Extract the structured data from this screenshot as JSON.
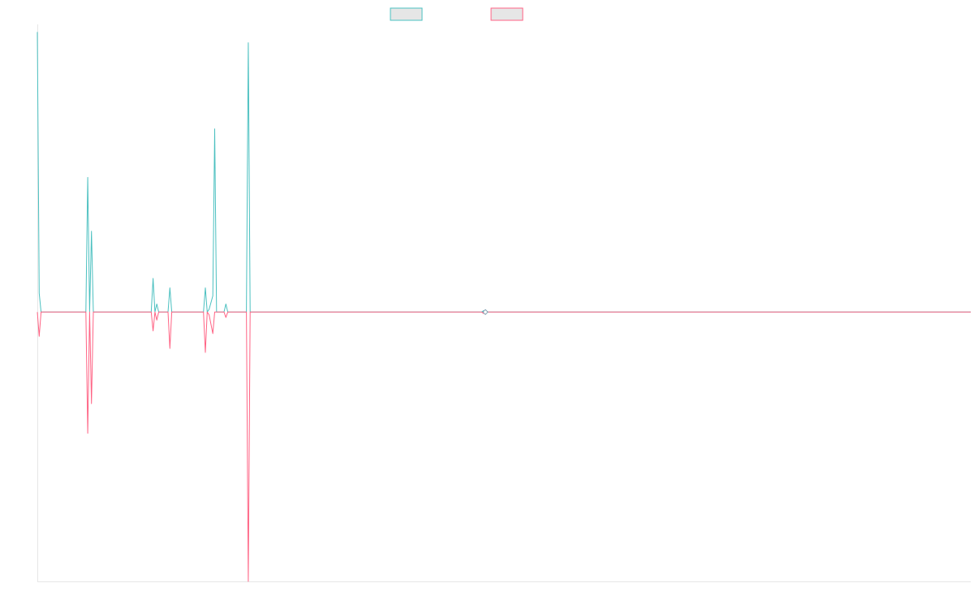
{
  "colors": {
    "series_a": "#4bc0c0",
    "series_b": "#ff6384",
    "legend_fill": "#e6e6e6",
    "axis": "#e6e6e6",
    "background": "#ffffff"
  },
  "chart_data": {
    "type": "line",
    "title": "",
    "xlabel": "",
    "ylabel": "",
    "grid": false,
    "legend": {
      "position": "top-center",
      "entries": [
        {
          "label": "",
          "color": "#4bc0c0"
        },
        {
          "label": "",
          "color": "#ff6384"
        }
      ]
    },
    "axes": {
      "x_ticks_visible": false,
      "y_ticks_visible": false
    },
    "ylim": [
      -1.0,
      1.05
    ],
    "x": [
      0,
      1,
      2,
      26,
      27,
      28,
      29,
      30,
      61,
      62,
      63,
      64,
      65,
      70,
      71,
      72,
      89,
      90,
      91,
      92,
      94,
      95,
      96,
      100,
      101,
      102,
      112,
      113,
      114,
      130,
      131,
      132,
      146,
      147,
      148,
      151,
      152,
      153,
      154,
      160,
      238,
      239,
      240,
      500
    ],
    "series": [
      {
        "values": [
          1.04,
          0.07,
          0,
          0,
          0.5,
          0,
          0.3,
          0,
          0,
          0.125,
          0,
          0.03,
          0,
          0,
          0.09,
          0,
          0,
          0.09,
          0,
          0.01,
          0.06,
          0.68,
          0,
          0,
          0.03,
          0,
          0,
          1.0,
          0,
          0,
          0,
          0,
          0,
          0,
          0,
          0,
          0,
          0,
          0,
          0,
          0,
          0.005,
          0,
          0
        ]
      },
      {
        "values": [
          0,
          -0.09,
          0,
          0,
          -0.45,
          0,
          -0.34,
          0,
          0,
          -0.07,
          0,
          -0.03,
          0,
          0,
          -0.135,
          0,
          0,
          -0.15,
          0,
          -0.01,
          -0.08,
          0,
          0,
          0,
          -0.02,
          0,
          0,
          -1.0,
          0,
          0,
          0,
          0,
          0,
          0,
          0,
          0,
          0,
          0,
          0,
          0,
          0,
          -0.005,
          0,
          0
        ]
      }
    ]
  }
}
